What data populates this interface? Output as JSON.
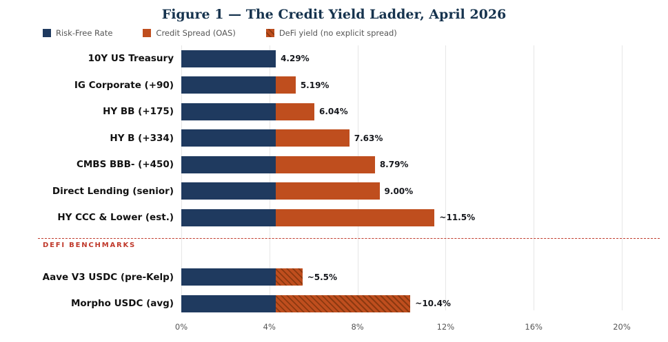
{
  "colors": {
    "risk_free": "#1f3a5f",
    "spread": "#bf4e1e",
    "hatch_line": "#8c3910",
    "separator": "#c0392b",
    "grid": "#e6e6e6"
  },
  "legend": {
    "items": [
      {
        "label": "Risk-Free Rate"
      },
      {
        "label": "Credit Spread (OAS)"
      },
      {
        "label": "DeFi yield (no explicit spread)"
      }
    ]
  },
  "chart_data": {
    "type": "bar",
    "orientation": "horizontal",
    "title": "Figure 1 — The Credit Yield Ladder, April 2026",
    "xlim": [
      0,
      20
    ],
    "x_ticks": [
      "0%",
      "4%",
      "8%",
      "12%",
      "16%",
      "20%"
    ],
    "grid": true,
    "risk_free_rate": 4.29,
    "series": [
      {
        "name": "Risk-Free Rate"
      },
      {
        "name": "Credit Spread (OAS)"
      },
      {
        "name": "DeFi yield (no explicit spread)"
      }
    ],
    "rows": [
      {
        "label": "10Y US Treasury",
        "risk_free": 4.29,
        "total": 4.29,
        "value_label": "4.29%",
        "defi": false
      },
      {
        "label": "IG Corporate (+90)",
        "risk_free": 4.29,
        "total": 5.19,
        "value_label": "5.19%",
        "defi": false
      },
      {
        "label": "HY BB (+175)",
        "risk_free": 4.29,
        "total": 6.04,
        "value_label": "6.04%",
        "defi": false
      },
      {
        "label": "HY B (+334)",
        "risk_free": 4.29,
        "total": 7.63,
        "value_label": "7.63%",
        "defi": false
      },
      {
        "label": "CMBS BBB- (+450)",
        "risk_free": 4.29,
        "total": 8.79,
        "value_label": "8.79%",
        "defi": false
      },
      {
        "label": "Direct Lending (senior)",
        "risk_free": 4.29,
        "total": 9.0,
        "value_label": "9.00%",
        "defi": false
      },
      {
        "label": "HY CCC & Lower (est.)",
        "risk_free": 4.29,
        "total": 11.5,
        "value_label": "~11.5%",
        "defi": false
      }
    ],
    "separator_label": "DEFI BENCHMARKS",
    "defi_rows": [
      {
        "label": "Aave V3 USDC (pre-Kelp)",
        "risk_free": 4.29,
        "total": 5.5,
        "value_label": "~5.5%",
        "defi": true
      },
      {
        "label": "Morpho USDC (avg)",
        "risk_free": 4.29,
        "total": 10.4,
        "value_label": "~10.4%",
        "defi": true
      }
    ]
  }
}
